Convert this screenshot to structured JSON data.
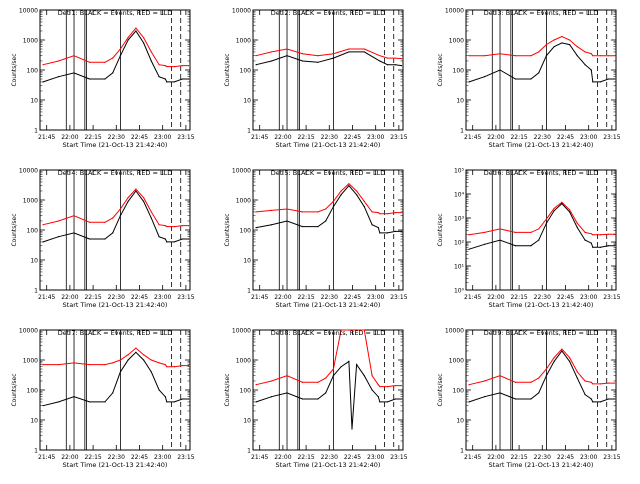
{
  "figure": {
    "xlabel": "Start Time (21-Oct-13 21:42:40)",
    "ylabel": "Counts/sec",
    "x_ticks": [
      "21:45",
      "22:00",
      "22:15",
      "22:30",
      "22:45",
      "23:00",
      "23:15"
    ],
    "colors": {
      "events": "#000000",
      "lld": "#ff0000",
      "axes": "#000000"
    }
  },
  "chart_data": [
    {
      "type": "line",
      "title": "Det 1: BLACK = Events, RED = LLD",
      "ylabel": "Counts/sec",
      "xlabel": "Start Time (21-Oct-13 21:42:40)",
      "xlim_minutes": [
        -2,
        95
      ],
      "ylim": [
        1,
        10000
      ],
      "y_scale": "log",
      "y_tick_labels": [
        "1",
        "10",
        "100",
        "1000",
        "10000"
      ],
      "vlines_solid": [
        15,
        20,
        27,
        28,
        50
      ],
      "vlines_dashed": [
        83,
        89
      ],
      "series": [
        {
          "name": "Events",
          "color": "#000000",
          "x": [
            0,
            10,
            20,
            30,
            40,
            45,
            50,
            55,
            60,
            65,
            70,
            75,
            79,
            80,
            85,
            90,
            94
          ],
          "y": [
            40,
            60,
            80,
            50,
            50,
            80,
            300,
            1000,
            2000,
            800,
            200,
            60,
            50,
            40,
            40,
            50,
            50
          ]
        },
        {
          "name": "LLD",
          "color": "#ff0000",
          "x": [
            0,
            10,
            20,
            30,
            40,
            45,
            50,
            55,
            60,
            65,
            70,
            75,
            79,
            80,
            85,
            90,
            94
          ],
          "y": [
            150,
            200,
            300,
            180,
            180,
            250,
            500,
            1200,
            2500,
            1200,
            400,
            150,
            140,
            130,
            130,
            140,
            140
          ]
        }
      ]
    },
    {
      "type": "line",
      "title": "Det 2: BLACK = Events, RED = LLD",
      "ylabel": "Counts/sec",
      "xlabel": "Start Time (21-Oct-13 21:42:40)",
      "xlim_minutes": [
        -2,
        95
      ],
      "ylim": [
        1,
        10000
      ],
      "y_scale": "log",
      "y_tick_labels": [
        "1",
        "10",
        "100",
        "1000",
        "10000"
      ],
      "vlines_solid": [
        15,
        20,
        27,
        28,
        50
      ],
      "vlines_dashed": [
        83,
        89
      ],
      "series": [
        {
          "name": "Events",
          "color": "#000000",
          "x": [
            0,
            10,
            20,
            30,
            40,
            50,
            60,
            70,
            80,
            85,
            90,
            94
          ],
          "y": [
            150,
            200,
            300,
            200,
            180,
            250,
            400,
            400,
            200,
            150,
            150,
            140
          ]
        },
        {
          "name": "LLD",
          "color": "#ff0000",
          "x": [
            0,
            10,
            20,
            30,
            40,
            50,
            60,
            70,
            80,
            85,
            90,
            94
          ],
          "y": [
            300,
            400,
            500,
            350,
            300,
            350,
            500,
            500,
            300,
            250,
            250,
            240
          ]
        }
      ]
    },
    {
      "type": "line",
      "title": "Det 3: BLACK = Events, RED = LLD",
      "ylabel": "Counts/sec",
      "xlabel": "Start Time (21-Oct-13 21:42:40)",
      "xlim_minutes": [
        -2,
        95
      ],
      "ylim": [
        1,
        10000
      ],
      "y_scale": "log",
      "y_tick_labels": [
        "1",
        "10",
        "100",
        "1000",
        "10000"
      ],
      "vlines_solid": [
        15,
        20,
        27,
        28,
        50
      ],
      "vlines_dashed": [
        83,
        89
      ],
      "series": [
        {
          "name": "Events",
          "color": "#000000",
          "x": [
            0,
            10,
            20,
            30,
            40,
            45,
            50,
            55,
            60,
            65,
            70,
            75,
            79,
            80,
            85,
            90,
            94
          ],
          "y": [
            40,
            60,
            100,
            50,
            50,
            80,
            300,
            600,
            800,
            700,
            300,
            150,
            100,
            40,
            40,
            50,
            50
          ]
        },
        {
          "name": "LLD",
          "color": "#ff0000",
          "x": [
            0,
            10,
            20,
            30,
            40,
            45,
            50,
            55,
            60,
            65,
            70,
            75,
            79,
            80,
            85,
            90,
            94
          ],
          "y": [
            300,
            300,
            350,
            300,
            300,
            400,
            700,
            1000,
            1300,
            1000,
            600,
            400,
            350,
            300,
            300,
            300,
            300
          ]
        }
      ]
    },
    {
      "type": "line",
      "title": "Det 4: BLACK = Events, RED = LLD",
      "ylabel": "Counts/sec",
      "xlabel": "Start Time (21-Oct-13 21:42:40)",
      "xlim_minutes": [
        -2,
        95
      ],
      "ylim": [
        1,
        10000
      ],
      "y_scale": "log",
      "y_tick_labels": [
        "1",
        "10",
        "100",
        "1000",
        "10000"
      ],
      "vlines_solid": [
        15,
        20,
        27,
        28,
        50
      ],
      "vlines_dashed": [
        83,
        89
      ],
      "series": [
        {
          "name": "Events",
          "color": "#000000",
          "x": [
            0,
            10,
            20,
            30,
            40,
            45,
            50,
            55,
            60,
            65,
            70,
            75,
            79,
            80,
            85,
            90,
            94
          ],
          "y": [
            40,
            60,
            80,
            50,
            50,
            80,
            300,
            900,
            2000,
            900,
            250,
            60,
            50,
            40,
            40,
            50,
            50
          ]
        },
        {
          "name": "LLD",
          "color": "#ff0000",
          "x": [
            0,
            10,
            20,
            30,
            40,
            45,
            50,
            55,
            60,
            65,
            70,
            75,
            79,
            80,
            85,
            90,
            94
          ],
          "y": [
            150,
            200,
            300,
            180,
            180,
            250,
            500,
            1200,
            2300,
            1200,
            400,
            150,
            140,
            130,
            130,
            140,
            140
          ]
        }
      ]
    },
    {
      "type": "line",
      "title": "Det 5: BLACK = Events, RED = LLD",
      "ylabel": "Counts/sec",
      "xlabel": "Start Time (21-Oct-13 21:42:40)",
      "xlim_minutes": [
        -2,
        95
      ],
      "ylim": [
        1,
        10000
      ],
      "y_scale": "log",
      "y_tick_labels": [
        "1",
        "10",
        "100",
        "1000",
        "10000"
      ],
      "vlines_solid": [
        15,
        20,
        27,
        28,
        50
      ],
      "vlines_dashed": [
        83,
        89
      ],
      "series": [
        {
          "name": "Events",
          "color": "#000000",
          "x": [
            0,
            10,
            20,
            30,
            40,
            45,
            50,
            55,
            60,
            65,
            70,
            75,
            79,
            80,
            85,
            90,
            94
          ],
          "y": [
            120,
            150,
            200,
            130,
            130,
            200,
            600,
            1500,
            3000,
            1500,
            600,
            150,
            120,
            80,
            80,
            90,
            90
          ]
        },
        {
          "name": "LLD",
          "color": "#ff0000",
          "x": [
            0,
            10,
            20,
            30,
            40,
            45,
            50,
            55,
            60,
            65,
            70,
            75,
            79,
            80,
            85,
            90,
            94
          ],
          "y": [
            400,
            450,
            500,
            400,
            400,
            500,
            900,
            2000,
            3500,
            2000,
            900,
            400,
            380,
            350,
            350,
            380,
            380
          ]
        }
      ]
    },
    {
      "type": "line",
      "title": "Det 6: BLACK = Events, RED = LLD",
      "ylabel": "Counts/sec",
      "xlabel": "Start Time (21-Oct-13 21:42:40)",
      "xlim_minutes": [
        -2,
        95
      ],
      "ylim": [
        1,
        100000
      ],
      "y_scale": "log",
      "y_tick_labels": [
        "10⁰",
        "10¹",
        "10²",
        "10³",
        "10⁴",
        "10⁵"
      ],
      "vlines_solid": [
        15,
        20,
        27,
        28,
        50
      ],
      "vlines_dashed": [
        83,
        89
      ],
      "series": [
        {
          "name": "Events",
          "color": "#000000",
          "x": [
            0,
            10,
            20,
            30,
            40,
            45,
            50,
            55,
            60,
            65,
            70,
            75,
            79,
            80,
            85,
            90,
            94
          ],
          "y": [
            50,
            80,
            120,
            70,
            70,
            120,
            600,
            2000,
            4000,
            1800,
            400,
            120,
            90,
            60,
            60,
            70,
            70
          ]
        },
        {
          "name": "LLD",
          "color": "#ff0000",
          "x": [
            0,
            10,
            20,
            30,
            40,
            45,
            50,
            55,
            60,
            65,
            70,
            75,
            79,
            80,
            85,
            90,
            94
          ],
          "y": [
            200,
            250,
            350,
            250,
            250,
            350,
            900,
            2500,
            4500,
            2200,
            600,
            250,
            220,
            200,
            200,
            210,
            210
          ]
        }
      ]
    },
    {
      "type": "line",
      "title": "Det 7: BLACK = Events, RED = LLD",
      "ylabel": "Counts/sec",
      "xlabel": "Start Time (21-Oct-13 21:42:40)",
      "xlim_minutes": [
        -2,
        95
      ],
      "ylim": [
        1,
        10000
      ],
      "y_scale": "log",
      "y_tick_labels": [
        "1",
        "10",
        "100",
        "1000",
        "10000"
      ],
      "vlines_solid": [
        15,
        20,
        27,
        28,
        50
      ],
      "vlines_dashed": [
        83,
        89
      ],
      "series": [
        {
          "name": "Events",
          "color": "#000000",
          "x": [
            0,
            10,
            20,
            30,
            40,
            45,
            50,
            55,
            60,
            65,
            70,
            75,
            79,
            80,
            85,
            90,
            94
          ],
          "y": [
            30,
            40,
            60,
            40,
            40,
            80,
            400,
            1000,
            1800,
            1000,
            400,
            100,
            60,
            40,
            40,
            50,
            50
          ]
        },
        {
          "name": "LLD",
          "color": "#ff0000",
          "x": [
            0,
            10,
            20,
            30,
            40,
            45,
            50,
            55,
            60,
            65,
            70,
            75,
            79,
            80,
            85,
            90,
            94
          ],
          "y": [
            700,
            700,
            800,
            700,
            700,
            800,
            1000,
            1500,
            2500,
            1500,
            1000,
            800,
            700,
            600,
            600,
            650,
            650
          ]
        }
      ]
    },
    {
      "type": "line",
      "title": "Det 8: BLACK = Events, RED = LLD",
      "ylabel": "Counts/sec",
      "xlabel": "Start Time (21-Oct-13 21:42:40)",
      "xlim_minutes": [
        -2,
        95
      ],
      "ylim": [
        1,
        10000
      ],
      "y_scale": "log",
      "y_tick_labels": [
        "1",
        "10",
        "100",
        "1000",
        "10000"
      ],
      "vlines_solid": [
        15,
        20,
        27,
        28,
        50
      ],
      "vlines_dashed": [
        83,
        89
      ],
      "series": [
        {
          "name": "Events",
          "color": "#000000",
          "x": [
            0,
            10,
            20,
            30,
            40,
            45,
            50,
            55,
            60,
            62,
            65,
            70,
            75,
            79,
            80,
            85,
            90,
            94
          ],
          "y": [
            40,
            60,
            80,
            50,
            50,
            80,
            300,
            600,
            900,
            5,
            700,
            300,
            100,
            60,
            40,
            40,
            50,
            50
          ]
        },
        {
          "name": "LLD",
          "color": "#ff0000",
          "x": [
            0,
            10,
            20,
            30,
            40,
            45,
            50,
            55,
            60,
            62,
            65,
            70,
            75,
            79,
            80,
            85,
            90,
            94
          ],
          "y": [
            150,
            200,
            300,
            180,
            180,
            250,
            500,
            10000,
            10000,
            10000,
            10000,
            10000,
            300,
            150,
            130,
            130,
            140,
            140
          ]
        }
      ]
    },
    {
      "type": "line",
      "title": "Det 9: BLACK = Events, RED = LLD",
      "ylabel": "Counts/sec",
      "xlabel": "Start Time (21-Oct-13 21:42:40)",
      "xlim_minutes": [
        -2,
        95
      ],
      "ylim": [
        1,
        10000
      ],
      "y_scale": "log",
      "y_tick_labels": [
        "1",
        "10",
        "100",
        "1000",
        "10000"
      ],
      "vlines_solid": [
        15,
        20,
        27,
        28,
        50
      ],
      "vlines_dashed": [
        83,
        89
      ],
      "series": [
        {
          "name": "Events",
          "color": "#000000",
          "x": [
            0,
            10,
            20,
            30,
            40,
            45,
            50,
            55,
            60,
            65,
            70,
            75,
            79,
            80,
            85,
            90,
            94
          ],
          "y": [
            40,
            60,
            80,
            50,
            50,
            80,
            300,
            900,
            2000,
            900,
            250,
            70,
            50,
            40,
            40,
            50,
            50
          ]
        },
        {
          "name": "LLD",
          "color": "#ff0000",
          "x": [
            0,
            10,
            20,
            30,
            40,
            45,
            50,
            55,
            60,
            65,
            70,
            75,
            79,
            80,
            85,
            90,
            94
          ],
          "y": [
            150,
            200,
            300,
            180,
            180,
            250,
            500,
            1200,
            2300,
            1200,
            400,
            200,
            180,
            160,
            160,
            170,
            170
          ]
        }
      ]
    }
  ]
}
